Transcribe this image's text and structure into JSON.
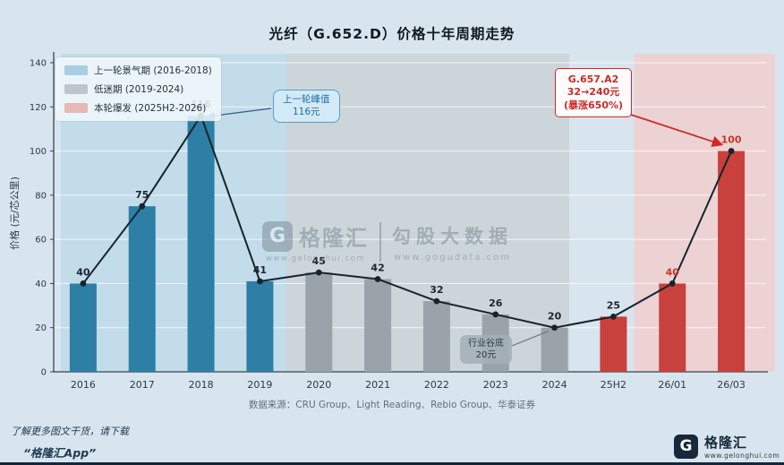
{
  "title": "光纤（G.652.D）价格十年周期走势",
  "chart_data": {
    "type": "bar+line",
    "categories": [
      "2016",
      "2017",
      "2018",
      "2019",
      "2020",
      "2021",
      "2022",
      "2023",
      "2024",
      "25H2",
      "26/01",
      "26/03"
    ],
    "values": [
      40,
      75,
      116,
      41,
      45,
      42,
      32,
      26,
      20,
      25,
      40,
      100
    ],
    "ylabel": "价格 (元/芯公里)",
    "ylim": [
      0,
      140
    ],
    "yticks": [
      0,
      20,
      40,
      60,
      80,
      100,
      120,
      140
    ],
    "grid": true,
    "legend_position": "top-left",
    "line_color": "#17242e",
    "bar_colors": [
      "#2d7fa5",
      "#2d7fa5",
      "#2d7fa5",
      "#2d7fa5",
      "#99a3a9",
      "#99a3a9",
      "#99a3a9",
      "#99a3a9",
      "#99a3a9",
      "#c8413c",
      "#c8413c",
      "#c8413c"
    ],
    "value_label_colors": [
      "#1b2631",
      "#1b2631",
      "#1b2631",
      "#1b2631",
      "#1b2631",
      "#1b2631",
      "#1b2631",
      "#1b2631",
      "#1b2631",
      "#1b2631",
      "#c0392b",
      "#c0392b"
    ],
    "regions": [
      {
        "name": "boom",
        "label": "上一轮景气期 (2016-2018)",
        "from": 0.12,
        "to": 3.95,
        "fill": "#c2dcea",
        "swatch": "#a9cde3"
      },
      {
        "name": "slump",
        "label": "低迷期 (2019-2024)",
        "from": 3.95,
        "to": 8.75,
        "fill": "#ccd5da",
        "swatch": "#bcc7cd"
      },
      {
        "name": "burst",
        "label": "本轮爆发 (2025H2-2026)",
        "from": 9.85,
        "to": 12.3,
        "fill": "#edd2d4",
        "swatch": "#e6b8b6"
      }
    ]
  },
  "annotations": {
    "peak": {
      "lines": [
        "上一轮峰值",
        "116元"
      ]
    },
    "burst": {
      "lines": [
        "G.657.A2",
        "32→240元",
        "(暴涨650%)"
      ]
    },
    "trough": {
      "lines": [
        "行业谷底",
        "20元"
      ]
    }
  },
  "watermark": {
    "logo_letter": "G",
    "brand": "格隆汇",
    "brand_url": "www.gelonghui.com",
    "product": "勾股大数据",
    "product_url": "www.gogudata.com"
  },
  "source": "数据来源：CRU Group、Light Reading、Rebio Group、华泰证券",
  "footer": {
    "promo_line1": "了解更多图文干货，请下载",
    "promo_line2": "“格隆汇App”",
    "logo_letter": "G",
    "brand": "格隆汇",
    "url": "www.gelonghui.com"
  }
}
